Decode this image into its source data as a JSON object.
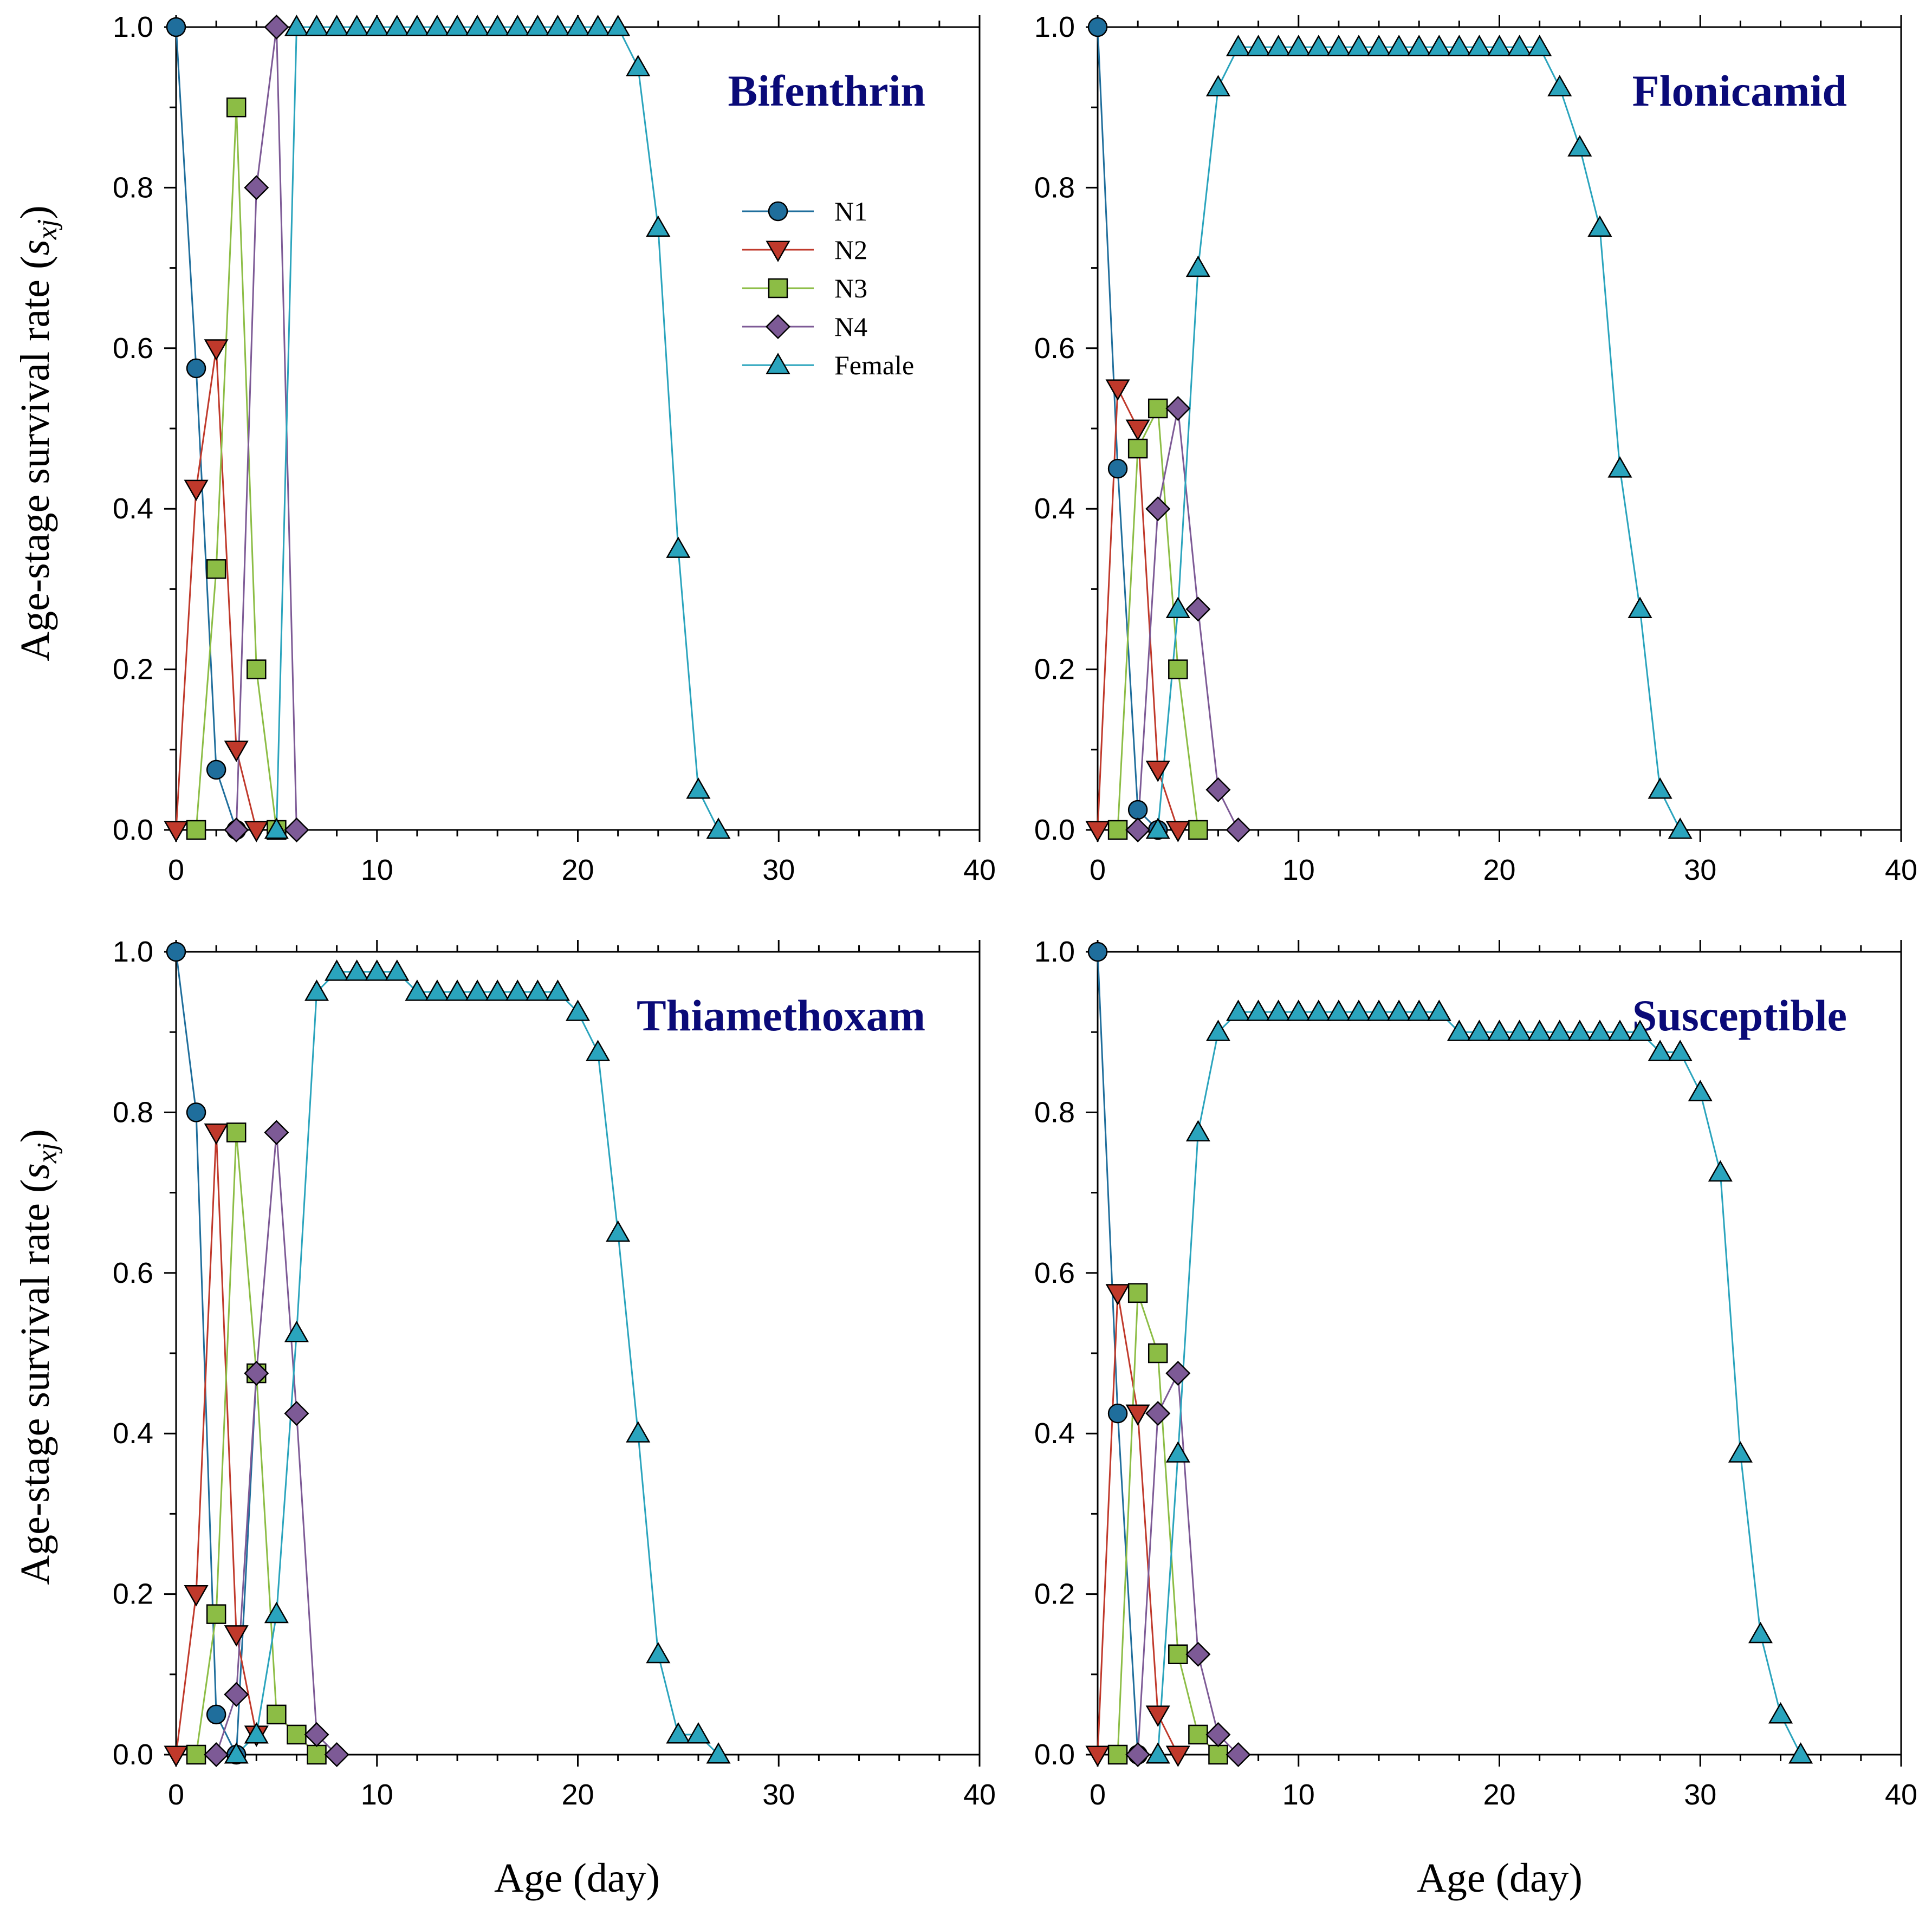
{
  "figure": {
    "ylabel_main": "Age-stage survival rate (",
    "ylabel_s": "s",
    "ylabel_sub": "xj",
    "ylabel_close": ")",
    "xlabel": "Age (day)"
  },
  "series_styles": [
    {
      "name": "N1",
      "marker": "circle",
      "color": "#1f6e9c"
    },
    {
      "name": "N2",
      "marker": "triangle-down",
      "color": "#c0392b"
    },
    {
      "name": "N3",
      "marker": "square",
      "color": "#8cbd45"
    },
    {
      "name": "N4",
      "marker": "diamond",
      "color": "#7d5a96"
    },
    {
      "name": "Female",
      "marker": "triangle-up",
      "color": "#2aa4bd"
    }
  ],
  "chart_data": [
    {
      "type": "line",
      "title": "Bifenthrin",
      "xlabel": "Age (day)",
      "ylabel": "Age-stage survival rate (sxj)",
      "xlim": [
        0,
        40
      ],
      "ylim": [
        0,
        1
      ],
      "xticks": [
        "0",
        "10",
        "20",
        "30",
        "40"
      ],
      "yticks": [
        "0.0",
        "0.2",
        "0.4",
        "0.6",
        "0.8",
        "1.0"
      ],
      "legend": [
        "N1",
        "N2",
        "N3",
        "N4",
        "Female"
      ],
      "series": [
        {
          "name": "N1",
          "x": [
            0,
            1,
            2,
            3
          ],
          "y": [
            1.0,
            0.575,
            0.075,
            0.0
          ]
        },
        {
          "name": "N2",
          "x": [
            0,
            1,
            2,
            3,
            4
          ],
          "y": [
            0.0,
            0.425,
            0.6,
            0.1,
            0.0
          ]
        },
        {
          "name": "N3",
          "x": [
            1,
            2,
            3,
            4,
            5
          ],
          "y": [
            0.0,
            0.325,
            0.9,
            0.2,
            0.0
          ]
        },
        {
          "name": "N4",
          "x": [
            3,
            4,
            5,
            6
          ],
          "y": [
            0.0,
            0.8,
            1.0,
            0.0
          ]
        },
        {
          "name": "Female",
          "x": [
            5,
            6,
            7,
            8,
            9,
            10,
            11,
            12,
            13,
            14,
            15,
            16,
            17,
            18,
            19,
            20,
            21,
            22,
            23,
            24,
            25,
            26,
            27
          ],
          "y": [
            0.0,
            1.0,
            1.0,
            1.0,
            1.0,
            1.0,
            1.0,
            1.0,
            1.0,
            1.0,
            1.0,
            1.0,
            1.0,
            1.0,
            1.0,
            1.0,
            1.0,
            1.0,
            0.95,
            0.75,
            0.35,
            0.05,
            0.0
          ]
        }
      ]
    },
    {
      "type": "line",
      "title": "Flonicamid",
      "xlabel": "Age (day)",
      "ylabel": "Age-stage survival rate (sxj)",
      "xlim": [
        0,
        40
      ],
      "ylim": [
        0,
        1
      ],
      "xticks": [
        "0",
        "10",
        "20",
        "30",
        "40"
      ],
      "yticks": [
        "0.0",
        "0.2",
        "0.4",
        "0.6",
        "0.8",
        "1.0"
      ],
      "series": [
        {
          "name": "N1",
          "x": [
            0,
            1,
            2,
            3
          ],
          "y": [
            1.0,
            0.45,
            0.025,
            0.0
          ]
        },
        {
          "name": "N2",
          "x": [
            0,
            1,
            2,
            3,
            4
          ],
          "y": [
            0.0,
            0.55,
            0.5,
            0.075,
            0.0
          ]
        },
        {
          "name": "N3",
          "x": [
            1,
            2,
            3,
            4,
            5
          ],
          "y": [
            0.0,
            0.475,
            0.525,
            0.2,
            0.0
          ]
        },
        {
          "name": "N4",
          "x": [
            2,
            3,
            4,
            5,
            6,
            7
          ],
          "y": [
            0.0,
            0.4,
            0.525,
            0.275,
            0.05,
            0.0
          ]
        },
        {
          "name": "Female",
          "x": [
            3,
            4,
            5,
            6,
            7,
            8,
            9,
            10,
            11,
            12,
            13,
            14,
            15,
            16,
            17,
            18,
            19,
            20,
            21,
            22,
            23,
            24,
            25,
            26,
            27,
            28,
            29
          ],
          "y": [
            0.0,
            0.275,
            0.7,
            0.925,
            0.975,
            0.975,
            0.975,
            0.975,
            0.975,
            0.975,
            0.975,
            0.975,
            0.975,
            0.975,
            0.975,
            0.975,
            0.975,
            0.975,
            0.975,
            0.975,
            0.925,
            0.85,
            0.75,
            0.45,
            0.275,
            0.05,
            0.0
          ]
        }
      ]
    },
    {
      "type": "line",
      "title": "Thiamethoxam",
      "xlabel": "Age (day)",
      "ylabel": "Age-stage survival rate (sxj)",
      "xlim": [
        0,
        40
      ],
      "ylim": [
        0,
        1
      ],
      "xticks": [
        "0",
        "10",
        "20",
        "30",
        "40"
      ],
      "yticks": [
        "0.0",
        "0.2",
        "0.4",
        "0.6",
        "0.8",
        "1.0"
      ],
      "series": [
        {
          "name": "N1",
          "x": [
            0,
            1,
            2,
            3,
            4
          ],
          "y": [
            1.0,
            0.8,
            0.05,
            0.0,
            0.475
          ]
        },
        {
          "name": "N2",
          "x": [
            0,
            1,
            2,
            3,
            4
          ],
          "y": [
            0.0,
            0.2,
            0.775,
            0.15,
            0.025
          ]
        },
        {
          "name": "N3",
          "x": [
            1,
            2,
            3,
            4,
            5,
            6,
            7
          ],
          "y": [
            0.0,
            0.175,
            0.775,
            0.475,
            0.05,
            0.025,
            0.0
          ]
        },
        {
          "name": "N4",
          "x": [
            2,
            3,
            4,
            5,
            6,
            7,
            8
          ],
          "y": [
            0.0,
            0.075,
            0.475,
            0.775,
            0.425,
            0.025,
            0.0
          ]
        },
        {
          "name": "Female",
          "x": [
            3,
            4,
            5,
            6,
            7,
            8,
            9,
            10,
            11,
            12,
            13,
            14,
            15,
            16,
            17,
            18,
            19,
            20,
            21,
            22,
            23,
            24,
            25,
            26,
            27
          ],
          "y": [
            0.0,
            0.025,
            0.175,
            0.525,
            0.95,
            0.975,
            0.975,
            0.975,
            0.975,
            0.95,
            0.95,
            0.95,
            0.95,
            0.95,
            0.95,
            0.95,
            0.95,
            0.925,
            0.875,
            0.65,
            0.4,
            0.125,
            0.025,
            0.025,
            0.0
          ]
        }
      ]
    },
    {
      "type": "line",
      "title": "Susceptible",
      "xlabel": "Age (day)",
      "ylabel": "Age-stage survival rate (sxj)",
      "xlim": [
        0,
        40
      ],
      "ylim": [
        0,
        1
      ],
      "xticks": [
        "0",
        "10",
        "20",
        "30",
        "40"
      ],
      "yticks": [
        "0.0",
        "0.2",
        "0.4",
        "0.6",
        "0.8",
        "1.0"
      ],
      "series": [
        {
          "name": "N1",
          "x": [
            0,
            1,
            2
          ],
          "y": [
            1.0,
            0.425,
            0.0
          ]
        },
        {
          "name": "N2",
          "x": [
            0,
            1,
            2,
            3,
            4
          ],
          "y": [
            0.0,
            0.575,
            0.425,
            0.05,
            0.0
          ]
        },
        {
          "name": "N3",
          "x": [
            1,
            2,
            3,
            4,
            5,
            6
          ],
          "y": [
            0.0,
            0.575,
            0.5,
            0.125,
            0.025,
            0.0
          ]
        },
        {
          "name": "N4",
          "x": [
            2,
            3,
            4,
            5,
            6,
            7
          ],
          "y": [
            0.0,
            0.425,
            0.475,
            0.125,
            0.025,
            0.0
          ]
        },
        {
          "name": "Female",
          "x": [
            3,
            4,
            5,
            6,
            7,
            8,
            9,
            10,
            11,
            12,
            13,
            14,
            15,
            16,
            17,
            18,
            19,
            20,
            21,
            22,
            23,
            24,
            25,
            26,
            27,
            28,
            29,
            30,
            31,
            32,
            33,
            34,
            35
          ],
          "y": [
            0.0,
            0.375,
            0.775,
            0.9,
            0.925,
            0.925,
            0.925,
            0.925,
            0.925,
            0.925,
            0.925,
            0.925,
            0.925,
            0.925,
            0.925,
            0.9,
            0.9,
            0.9,
            0.9,
            0.9,
            0.9,
            0.9,
            0.9,
            0.9,
            0.9,
            0.875,
            0.875,
            0.825,
            0.725,
            0.375,
            0.15,
            0.05,
            0.0
          ]
        }
      ]
    }
  ]
}
